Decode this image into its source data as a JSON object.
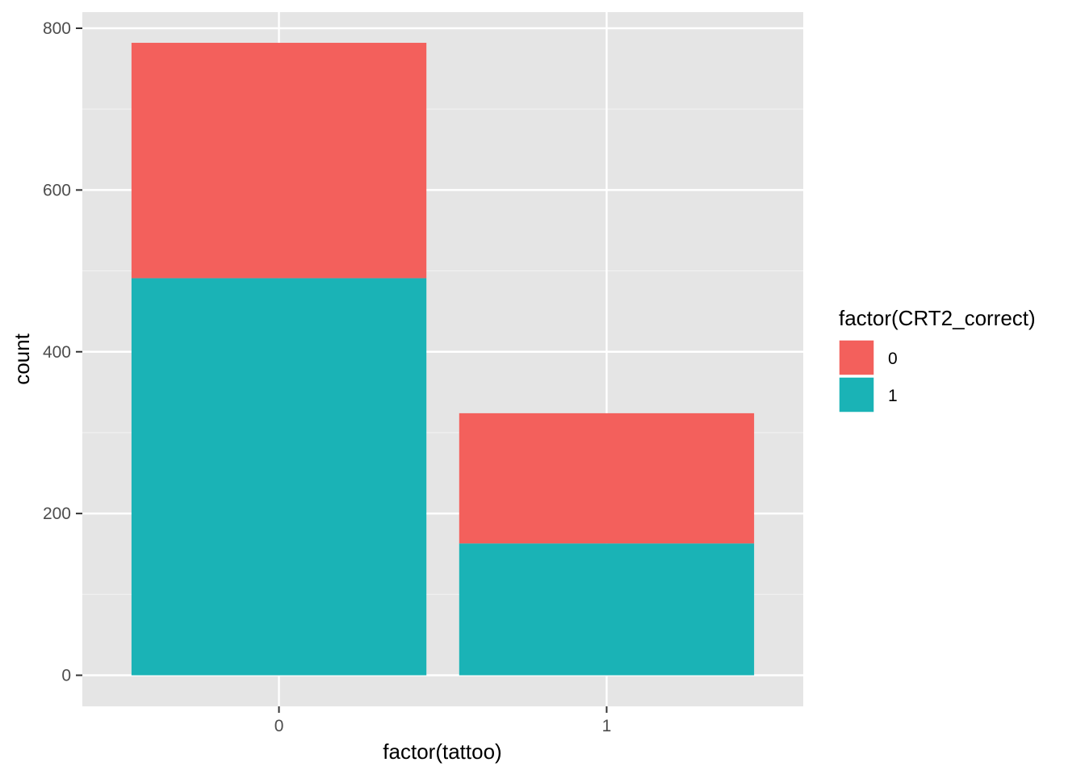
{
  "chart_data": {
    "type": "bar",
    "stacked": true,
    "title": "",
    "xlabel": "factor(tattoo)",
    "ylabel": "count",
    "categories": [
      "0",
      "1"
    ],
    "ylim": [
      0,
      800
    ],
    "yticks": [
      0,
      200,
      400,
      600,
      800
    ],
    "grid": true,
    "legend": {
      "title": "factor(CRT2_correct)",
      "position": "right"
    },
    "series": [
      {
        "name": "0",
        "color": "#F3605C",
        "values": [
          291,
          161
        ]
      },
      {
        "name": "1",
        "color": "#1AB3B6",
        "values": [
          491,
          163
        ]
      }
    ]
  }
}
